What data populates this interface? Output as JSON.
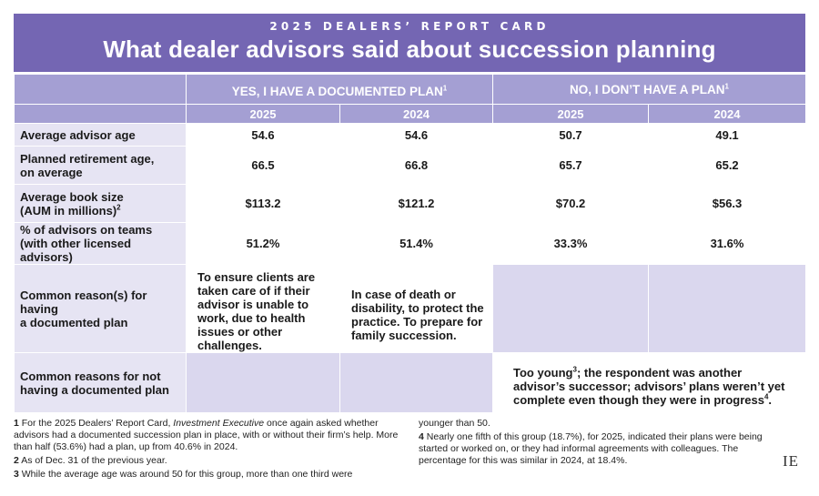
{
  "header": {
    "kicker": "2025 DEALERS’ REPORT CARD",
    "title": "What dealer advisors said about succession planning"
  },
  "columns": {
    "yes_group": "YES, I HAVE A DOCUMENTED PLAN",
    "yes_sup": "1",
    "no_group": "NO, I DON’T HAVE A PLAN",
    "no_sup": "1",
    "years": [
      "2025",
      "2024",
      "2025",
      "2024"
    ]
  },
  "rows": [
    {
      "label": "Average advisor age",
      "values": [
        "54.6",
        "54.6",
        "50.7",
        "49.1"
      ]
    },
    {
      "label_line1": "Planned retirement age,",
      "label_line2": "on average",
      "values": [
        "66.5",
        "66.8",
        "65.7",
        "65.2"
      ]
    },
    {
      "label_line1": "Average book size",
      "label_line2": "(AUM in millions)",
      "sup": "2",
      "values": [
        "$113.2",
        "$121.2",
        "$70.2",
        "$56.3"
      ]
    },
    {
      "label_line1": "% of advisors on teams",
      "label_line2": "(with other licensed advisors)",
      "values": [
        "51.2%",
        "51.4%",
        "33.3%",
        "31.6%"
      ]
    }
  ],
  "reasons_having": {
    "label_line1": "Common reason(s) for having",
    "label_line2": "a documented plan",
    "text_2025": "To ensure clients are taken care of if their advisor is unable to work, due to health issues or other challenges.",
    "text_2024": "In case of death or disability, to protect the practice. To prepare for family succession."
  },
  "reasons_not": {
    "label_line1": "Common reasons for not",
    "label_line2": "having a documented plan",
    "text_a": "Too young",
    "sup_a": "3",
    "text_b": "; the respondent was another advisor’s successor; advisors’ plans weren’t yet complete even though they were in progress",
    "sup_b": "4",
    "text_end": "."
  },
  "footnotes": {
    "n1_num": "1",
    "n1_a": "For the 2025 Dealers’ Report Card,",
    "n1_em": "Investment Executive",
    "n1_b": "once again asked whether advisors had a documented succession plan in place, with or without their firm’s help. More than half (53.6%) had a plan, up from 40.6% in 2024.",
    "n2_num": "2",
    "n2": "As of Dec. 31 of the previous year.",
    "n3_num": "3",
    "n3": "While the average age was around 50 for this group, more than one third were",
    "n3_cont": "younger than 50.",
    "n4_num": "4",
    "n4": "Nearly one fifth of this group (18.7%), for 2025, indicated their plans were being started or worked on, or they had informal agreements with colleagues. The percentage for this was similar in 2024, at 18.4%."
  },
  "logo": "IE",
  "colors": {
    "header": "#7466b3",
    "subheader": "#a49fd3",
    "label_bg": "#e6e4f3",
    "shade": "#dad7ee"
  }
}
